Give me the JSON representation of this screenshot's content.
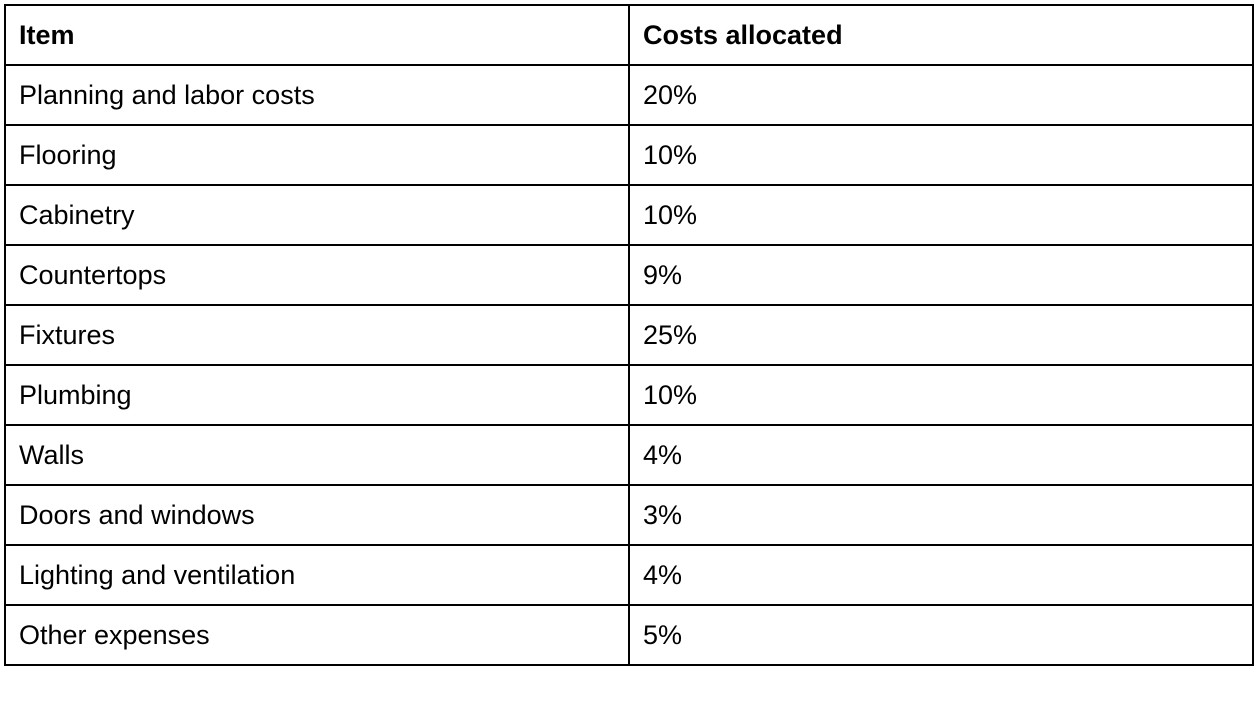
{
  "table": {
    "headers": [
      "Item",
      "Costs allocated"
    ],
    "rows": [
      [
        "Planning and labor costs",
        "20%"
      ],
      [
        "Flooring",
        "10%"
      ],
      [
        "Cabinetry",
        "10%"
      ],
      [
        "Countertops",
        "9%"
      ],
      [
        "Fixtures",
        "25%"
      ],
      [
        "Plumbing",
        "10%"
      ],
      [
        "Walls",
        "4%"
      ],
      [
        "Doors and windows",
        "3%"
      ],
      [
        "Lighting and ventilation",
        "4%"
      ],
      [
        "Other expenses",
        "5%"
      ]
    ]
  }
}
